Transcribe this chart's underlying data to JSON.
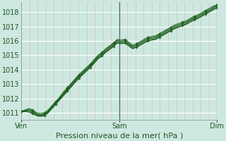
{
  "title": "",
  "xlabel": "Pression niveau de la mer( hPa )",
  "ylabel": "",
  "bg_color": "#cce8e0",
  "grid_h_color": "#ffffff",
  "grid_v_color": "#ddbbbb",
  "line_color": "#1a5c1a",
  "xmin": 0,
  "xmax": 48,
  "ymin": 1010.5,
  "ymax": 1018.7,
  "yticks": [
    1011,
    1012,
    1013,
    1014,
    1015,
    1016,
    1017,
    1018
  ],
  "xtick_positions": [
    0,
    24,
    48
  ],
  "xtick_labels": [
    "Ven",
    "Sam",
    "Dim"
  ],
  "series": [
    [
      1011.1,
      1011.15,
      1011.2,
      1011.1,
      1010.9,
      1010.85,
      1010.9,
      1011.1,
      1011.4,
      1011.7,
      1012.0,
      1012.35,
      1012.65,
      1012.95,
      1013.25,
      1013.55,
      1013.8,
      1014.05,
      1014.3,
      1014.6,
      1014.9,
      1015.1,
      1015.35,
      1015.55,
      1015.75,
      1016.0,
      1015.95,
      1016.0,
      1015.8,
      1015.6,
      1015.7,
      1015.85,
      1016.0,
      1016.15,
      1016.2,
      1016.25,
      1016.4,
      1016.55,
      1016.7,
      1016.85,
      1017.0,
      1017.1,
      1017.2,
      1017.3,
      1017.45,
      1017.6,
      1017.7,
      1017.85,
      1018.0,
      1018.15,
      1018.3,
      1018.45
    ],
    [
      1011.1,
      1011.1,
      1011.05,
      1010.95,
      1010.8,
      1010.75,
      1010.8,
      1011.0,
      1011.3,
      1011.6,
      1011.9,
      1012.2,
      1012.5,
      1012.8,
      1013.1,
      1013.4,
      1013.65,
      1013.9,
      1014.15,
      1014.45,
      1014.75,
      1014.95,
      1015.2,
      1015.4,
      1015.6,
      1015.85,
      1015.8,
      1015.85,
      1015.65,
      1015.45,
      1015.55,
      1015.7,
      1015.85,
      1016.0,
      1016.05,
      1016.1,
      1016.25,
      1016.4,
      1016.55,
      1016.7,
      1016.85,
      1016.95,
      1017.05,
      1017.15,
      1017.3,
      1017.45,
      1017.55,
      1017.7,
      1017.85,
      1018.0,
      1018.15,
      1018.3
    ],
    [
      1011.1,
      1011.2,
      1011.3,
      1011.2,
      1011.0,
      1010.95,
      1011.0,
      1011.2,
      1011.5,
      1011.8,
      1012.1,
      1012.45,
      1012.75,
      1013.05,
      1013.35,
      1013.65,
      1013.9,
      1014.15,
      1014.4,
      1014.7,
      1015.0,
      1015.2,
      1015.45,
      1015.65,
      1015.85,
      1016.1,
      1016.05,
      1016.1,
      1015.9,
      1015.7,
      1015.8,
      1015.95,
      1016.1,
      1016.25,
      1016.3,
      1016.35,
      1016.5,
      1016.65,
      1016.8,
      1016.95,
      1017.1,
      1017.2,
      1017.3,
      1017.4,
      1017.55,
      1017.7,
      1017.8,
      1017.95,
      1018.1,
      1018.25,
      1018.4,
      1018.5
    ],
    [
      1011.05,
      1011.1,
      1011.1,
      1011.0,
      1010.85,
      1010.8,
      1010.85,
      1011.05,
      1011.35,
      1011.65,
      1011.95,
      1012.25,
      1012.55,
      1012.85,
      1013.15,
      1013.45,
      1013.7,
      1013.95,
      1014.2,
      1014.5,
      1014.8,
      1015.0,
      1015.25,
      1015.45,
      1015.65,
      1015.9,
      1015.85,
      1015.9,
      1015.7,
      1015.5,
      1015.6,
      1015.75,
      1015.9,
      1016.05,
      1016.1,
      1016.15,
      1016.3,
      1016.45,
      1016.6,
      1016.75,
      1016.9,
      1017.0,
      1017.1,
      1017.2,
      1017.35,
      1017.5,
      1017.6,
      1017.75,
      1017.9,
      1018.05,
      1018.2,
      1018.35
    ],
    [
      1011.05,
      1011.15,
      1011.2,
      1011.1,
      1010.9,
      1010.85,
      1010.9,
      1011.1,
      1011.4,
      1011.7,
      1012.0,
      1012.35,
      1012.65,
      1012.95,
      1013.25,
      1013.55,
      1013.8,
      1014.05,
      1014.3,
      1014.6,
      1014.9,
      1015.1,
      1015.35,
      1015.55,
      1015.75,
      1016.0,
      1015.95,
      1016.0,
      1015.8,
      1015.6,
      1015.7,
      1015.85,
      1016.0,
      1016.15,
      1016.2,
      1016.25,
      1016.4,
      1016.55,
      1016.7,
      1016.85,
      1017.0,
      1017.1,
      1017.2,
      1017.3,
      1017.45,
      1017.6,
      1017.7,
      1017.85,
      1018.0,
      1018.15,
      1018.3,
      1018.45
    ]
  ],
  "series_with_markers": [
    0,
    1,
    2
  ],
  "vline_positions": [
    24,
    48
  ],
  "font_size_xlabel": 8,
  "font_size_ticks": 7,
  "n_vgrid": 24
}
